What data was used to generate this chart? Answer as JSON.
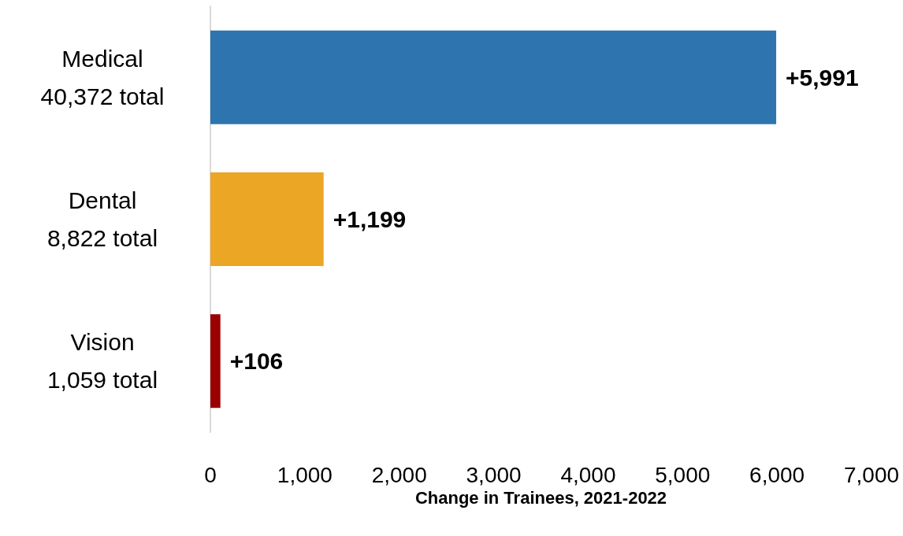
{
  "chart_data": {
    "type": "bar",
    "orientation": "horizontal",
    "categories": [
      "Medical\n40,372 total",
      "Dental\n8,822 total",
      "Vision\n1,059 total"
    ],
    "values": [
      5991,
      1199,
      106
    ],
    "colors": [
      "#2e75b0",
      "#eba626",
      "#9b0000"
    ],
    "value_labels": [
      "+5,991",
      "+1,199",
      "+106"
    ],
    "xlabel": "Change in Trainees, 2021-2022",
    "xlim": [
      0,
      7000
    ],
    "xticks": [
      0,
      {
        "value": 1000,
        "label": "1,000"
      },
      {
        "value": 2000,
        "label": "2,000"
      },
      {
        "value": 3000,
        "label": "3,000"
      },
      {
        "value": 4000,
        "label": "4,000"
      },
      {
        "value": 5000,
        "label": "5,000"
      },
      {
        "value": 6000,
        "label": "6,000"
      },
      {
        "value": 7000,
        "label": "7,000"
      }
    ],
    "grid": false
  }
}
